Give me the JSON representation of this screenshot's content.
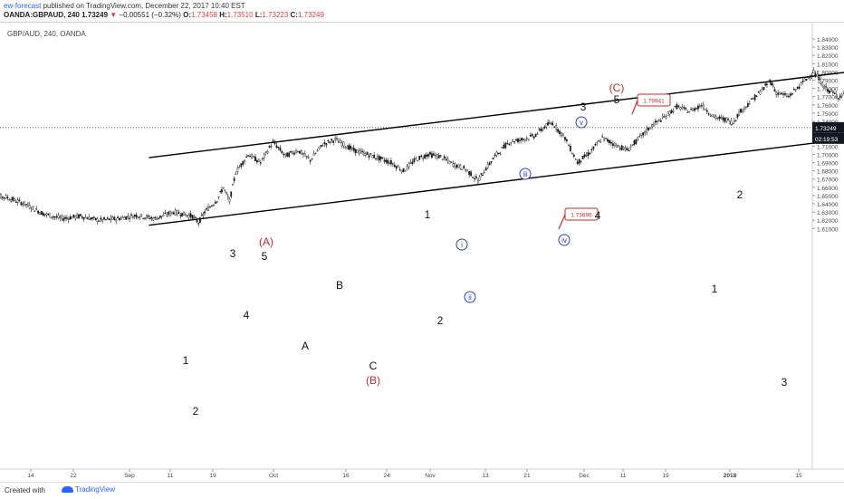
{
  "header": {
    "author": "ew-forecast",
    "published_text": " published on TradingView.com, December 22, 2017 10:40 EST"
  },
  "symbol_bar": {
    "symbol": "OANDA:GBPAUD, 240",
    "last": "1.73249",
    "change": "−0.00551 (−0.32%)",
    "open_label": "O:",
    "open": "1.73458",
    "high_label": "H:",
    "high": "1.73510",
    "low_label": "L:",
    "low": "1.73223",
    "close_label": "C:",
    "close": "1.73249"
  },
  "pair_label": "GBP/AUD, 240, OANDA",
  "footer": {
    "created_with": "Created with",
    "brand": "TradingView"
  },
  "colors": {
    "candle": "#1a1a1a",
    "channel": "#000000",
    "forecast": "#1f2fd6",
    "red_label": "#c62828",
    "circle": "#2c3fbf",
    "price_badge": "#131722"
  },
  "chart_data": {
    "type": "candlestick",
    "symbol": "GBP/AUD",
    "timeframe": "240",
    "y_range": [
      1.605,
      1.845
    ],
    "y_ticks": [
      "1.84000",
      "1.83000",
      "1.82000",
      "1.81000",
      "1.80000",
      "1.79000",
      "1.78000",
      "1.77000",
      "1.76000",
      "1.75000",
      "1.74000",
      "1.73000",
      "1.72000",
      "1.71000",
      "1.70000",
      "1.69000",
      "1.68000",
      "1.67000",
      "1.66000",
      "1.65000",
      "1.64000",
      "1.63000",
      "1.62000",
      "1.61000"
    ],
    "x_ticks": [
      "14",
      "22",
      "Sep",
      "11",
      "19",
      "Oct",
      "16",
      "24",
      "Nov",
      "13",
      "21",
      "Dec",
      "11",
      "19",
      "2018",
      "15"
    ],
    "price_series": [
      [
        "Aug 7",
        1.65
      ],
      [
        "Aug 10",
        1.648
      ],
      [
        "Aug 13",
        1.64
      ],
      [
        "Aug 16",
        1.628
      ],
      [
        "Aug 19",
        1.622
      ],
      [
        "Aug 22",
        1.625
      ],
      [
        "Aug 25",
        1.62
      ],
      [
        "Aug 28",
        1.622
      ],
      [
        "Aug 31",
        1.626
      ],
      [
        "Sep 3",
        1.622
      ],
      [
        "Sep 6",
        1.63
      ],
      [
        "Sep 9",
        1.625
      ],
      [
        "Sep 10",
        1.617
      ],
      [
        "Sep 11",
        1.63
      ],
      [
        "Sep 13",
        1.645
      ],
      [
        "Sep 14",
        1.66
      ],
      [
        "Sep 15",
        1.643
      ],
      [
        "Sep 16",
        1.678
      ],
      [
        "Sep 18",
        1.7
      ],
      [
        "Sep 20",
        1.69
      ],
      [
        "Sep 22",
        1.715
      ],
      [
        "Sep 24",
        1.698
      ],
      [
        "Sep 26",
        1.705
      ],
      [
        "Sep 28",
        1.693
      ],
      [
        "Sep 30",
        1.712
      ],
      [
        "Oct 2",
        1.718
      ],
      [
        "Oct 5",
        1.705
      ],
      [
        "Oct 8",
        1.698
      ],
      [
        "Oct 11",
        1.69
      ],
      [
        "Oct 13",
        1.68
      ],
      [
        "Oct 15",
        1.694
      ],
      [
        "Oct 17",
        1.7
      ],
      [
        "Oct 19",
        1.697
      ],
      [
        "Oct 21",
        1.688
      ],
      [
        "Oct 23",
        1.682
      ],
      [
        "Oct 25",
        1.668
      ],
      [
        "Oct 26",
        1.68
      ],
      [
        "Oct 28",
        1.7
      ],
      [
        "Oct 30",
        1.715
      ],
      [
        "Nov 1",
        1.718
      ],
      [
        "Nov 3",
        1.722
      ],
      [
        "Nov 5",
        1.735
      ],
      [
        "Nov 6",
        1.738
      ],
      [
        "Nov 8",
        1.72
      ],
      [
        "Nov 10",
        1.69
      ],
      [
        "Nov 12",
        1.702
      ],
      [
        "Nov 14",
        1.72
      ],
      [
        "Nov 16",
        1.712
      ],
      [
        "Nov 18",
        1.705
      ],
      [
        "Nov 20",
        1.72
      ],
      [
        "Nov 22",
        1.735
      ],
      [
        "Nov 24",
        1.745
      ],
      [
        "Nov 26",
        1.758
      ],
      [
        "Nov 28",
        1.752
      ],
      [
        "Nov 30",
        1.76
      ],
      [
        "Dec 2",
        1.745
      ],
      [
        "Dec 4",
        1.742
      ],
      [
        "Dec 5",
        1.738
      ],
      [
        "Dec 6",
        1.75
      ],
      [
        "Dec 8",
        1.765
      ],
      [
        "Dec 10",
        1.78
      ],
      [
        "Dec 11",
        1.79
      ],
      [
        "Dec 12",
        1.775
      ],
      [
        "Dec 14",
        1.77
      ],
      [
        "Dec 16",
        1.785
      ],
      [
        "Dec 18",
        1.8
      ],
      [
        "Dec 20",
        1.78
      ],
      [
        "Dec 22",
        1.77
      ],
      [
        "Dec 24",
        1.778
      ],
      [
        "Dec 26",
        1.76
      ],
      [
        "Dec 28",
        1.752
      ],
      [
        "Dec 30",
        1.742
      ],
      [
        "Jan 1",
        1.748
      ],
      [
        "Jan 3",
        1.744
      ],
      [
        "Jan 5",
        1.748
      ],
      [
        "Jan 7",
        1.735
      ],
      [
        "Jan 9",
        1.732
      ]
    ],
    "channel_upper": [
      [
        "Sep 2",
        1.696
      ],
      [
        "Jan 24",
        1.829
      ]
    ],
    "channel_lower": [
      [
        "Sep 2",
        1.614
      ],
      [
        "Jan 24",
        1.748
      ]
    ],
    "forecast_path": [
      [
        "Jan 11",
        1.738
      ],
      [
        "Jan 17",
        1.711
      ],
      [
        "Jan 22",
        1.749
      ],
      [
        "Feb 1",
        1.669
      ]
    ],
    "current_price": "1.73249",
    "countdown": "02:19:53",
    "price_flags": [
      "1.79941",
      "1.73696"
    ],
    "wave_labels": [
      {
        "text": "1",
        "style": "plain"
      },
      {
        "text": "2",
        "style": "plain"
      },
      {
        "text": "3",
        "style": "plain"
      },
      {
        "text": "4",
        "style": "plain"
      },
      {
        "text": "5",
        "style": "plain"
      },
      {
        "text": "(A)",
        "style": "red"
      },
      {
        "text": "A",
        "style": "plain"
      },
      {
        "text": "B",
        "style": "plain"
      },
      {
        "text": "C",
        "style": "plain"
      },
      {
        "text": "(B)",
        "style": "red"
      },
      {
        "text": "1",
        "style": "plain"
      },
      {
        "text": "2",
        "style": "plain"
      },
      {
        "text": "i",
        "style": "circled"
      },
      {
        "text": "ii",
        "style": "circled"
      },
      {
        "text": "iii",
        "style": "circled"
      },
      {
        "text": "iv",
        "style": "circled"
      },
      {
        "text": "v",
        "style": "circled"
      },
      {
        "text": "3",
        "style": "plain"
      },
      {
        "text": "4",
        "style": "plain"
      },
      {
        "text": "5",
        "style": "plain"
      },
      {
        "text": "(C)",
        "style": "red"
      },
      {
        "text": "1",
        "style": "plain"
      },
      {
        "text": "2",
        "style": "plain"
      },
      {
        "text": "3",
        "style": "plain"
      }
    ]
  }
}
